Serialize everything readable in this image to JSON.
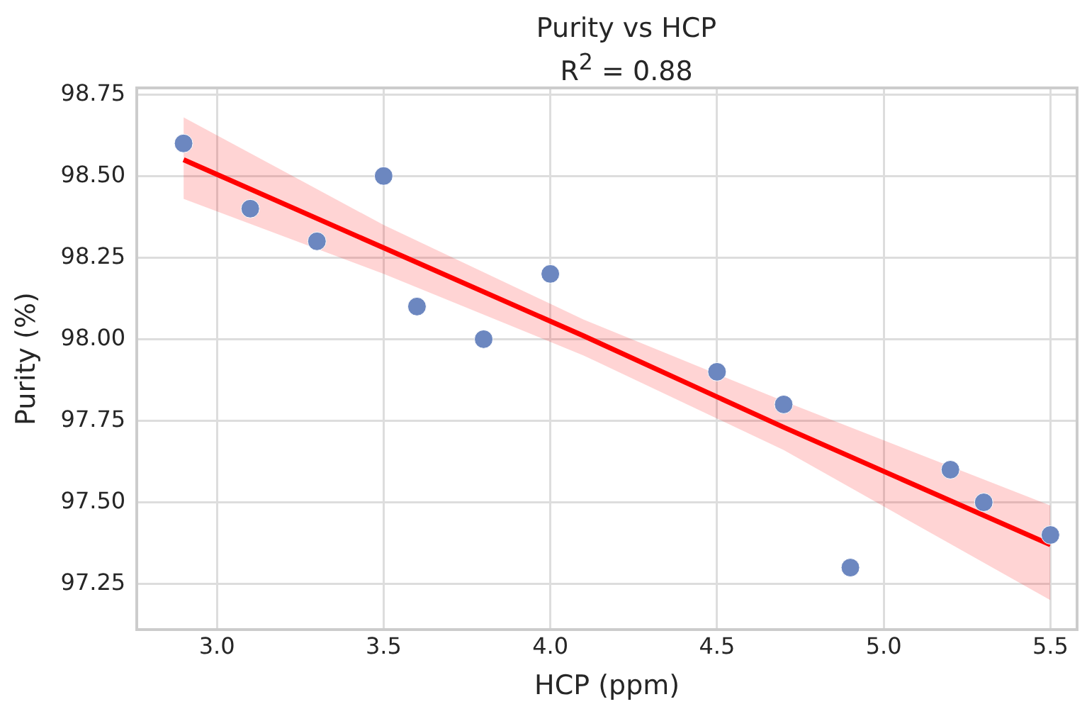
{
  "chart_data": {
    "type": "scatter",
    "title": "Purity vs HCP",
    "subtitle": "R$^{2}$ = 0.88",
    "xlabel": "HCP (ppm)",
    "ylabel": "Purity (%)",
    "x": [
      2.9,
      3.1,
      3.3,
      3.5,
      3.6,
      3.8,
      4.0,
      4.5,
      4.7,
      4.9,
      5.2,
      5.3,
      5.5
    ],
    "series": [
      {
        "type": "scatter",
        "marker": "circle",
        "color": "#6c87c0",
        "values": [
          98.6,
          98.4,
          98.3,
          98.5,
          98.1,
          98.0,
          98.2,
          97.9,
          97.8,
          97.3,
          97.6,
          97.5,
          97.4
        ]
      },
      {
        "type": "line",
        "marker": "none",
        "color": "#ff0000",
        "x": [
          2.9,
          3.5,
          4.1,
          4.7,
          5.5
        ],
        "values": [
          98.55,
          98.28,
          98.01,
          97.73,
          97.37
        ],
        "lower": [
          98.43,
          98.2,
          97.95,
          97.66,
          97.2
        ],
        "upper": [
          98.68,
          98.35,
          98.06,
          97.81,
          97.49
        ]
      }
    ],
    "xlim": [
      2.76,
      5.58
    ],
    "ylim": [
      97.11,
      98.77
    ],
    "xticks": [
      {
        "value": 3,
        "label": "3.0"
      },
      3.5,
      {
        "value": 4,
        "label": "4.0"
      },
      4.5,
      {
        "value": 5,
        "label": "5.0"
      },
      5.5
    ],
    "yticks": [
      97.25,
      {
        "value": 97.5,
        "label": "97.50"
      },
      97.75,
      {
        "value": 98,
        "label": "98.00"
      },
      98.25,
      {
        "value": 98.5,
        "label": "98.50"
      },
      98.75
    ],
    "grid": true,
    "legend": false,
    "line_style": "solid"
  }
}
